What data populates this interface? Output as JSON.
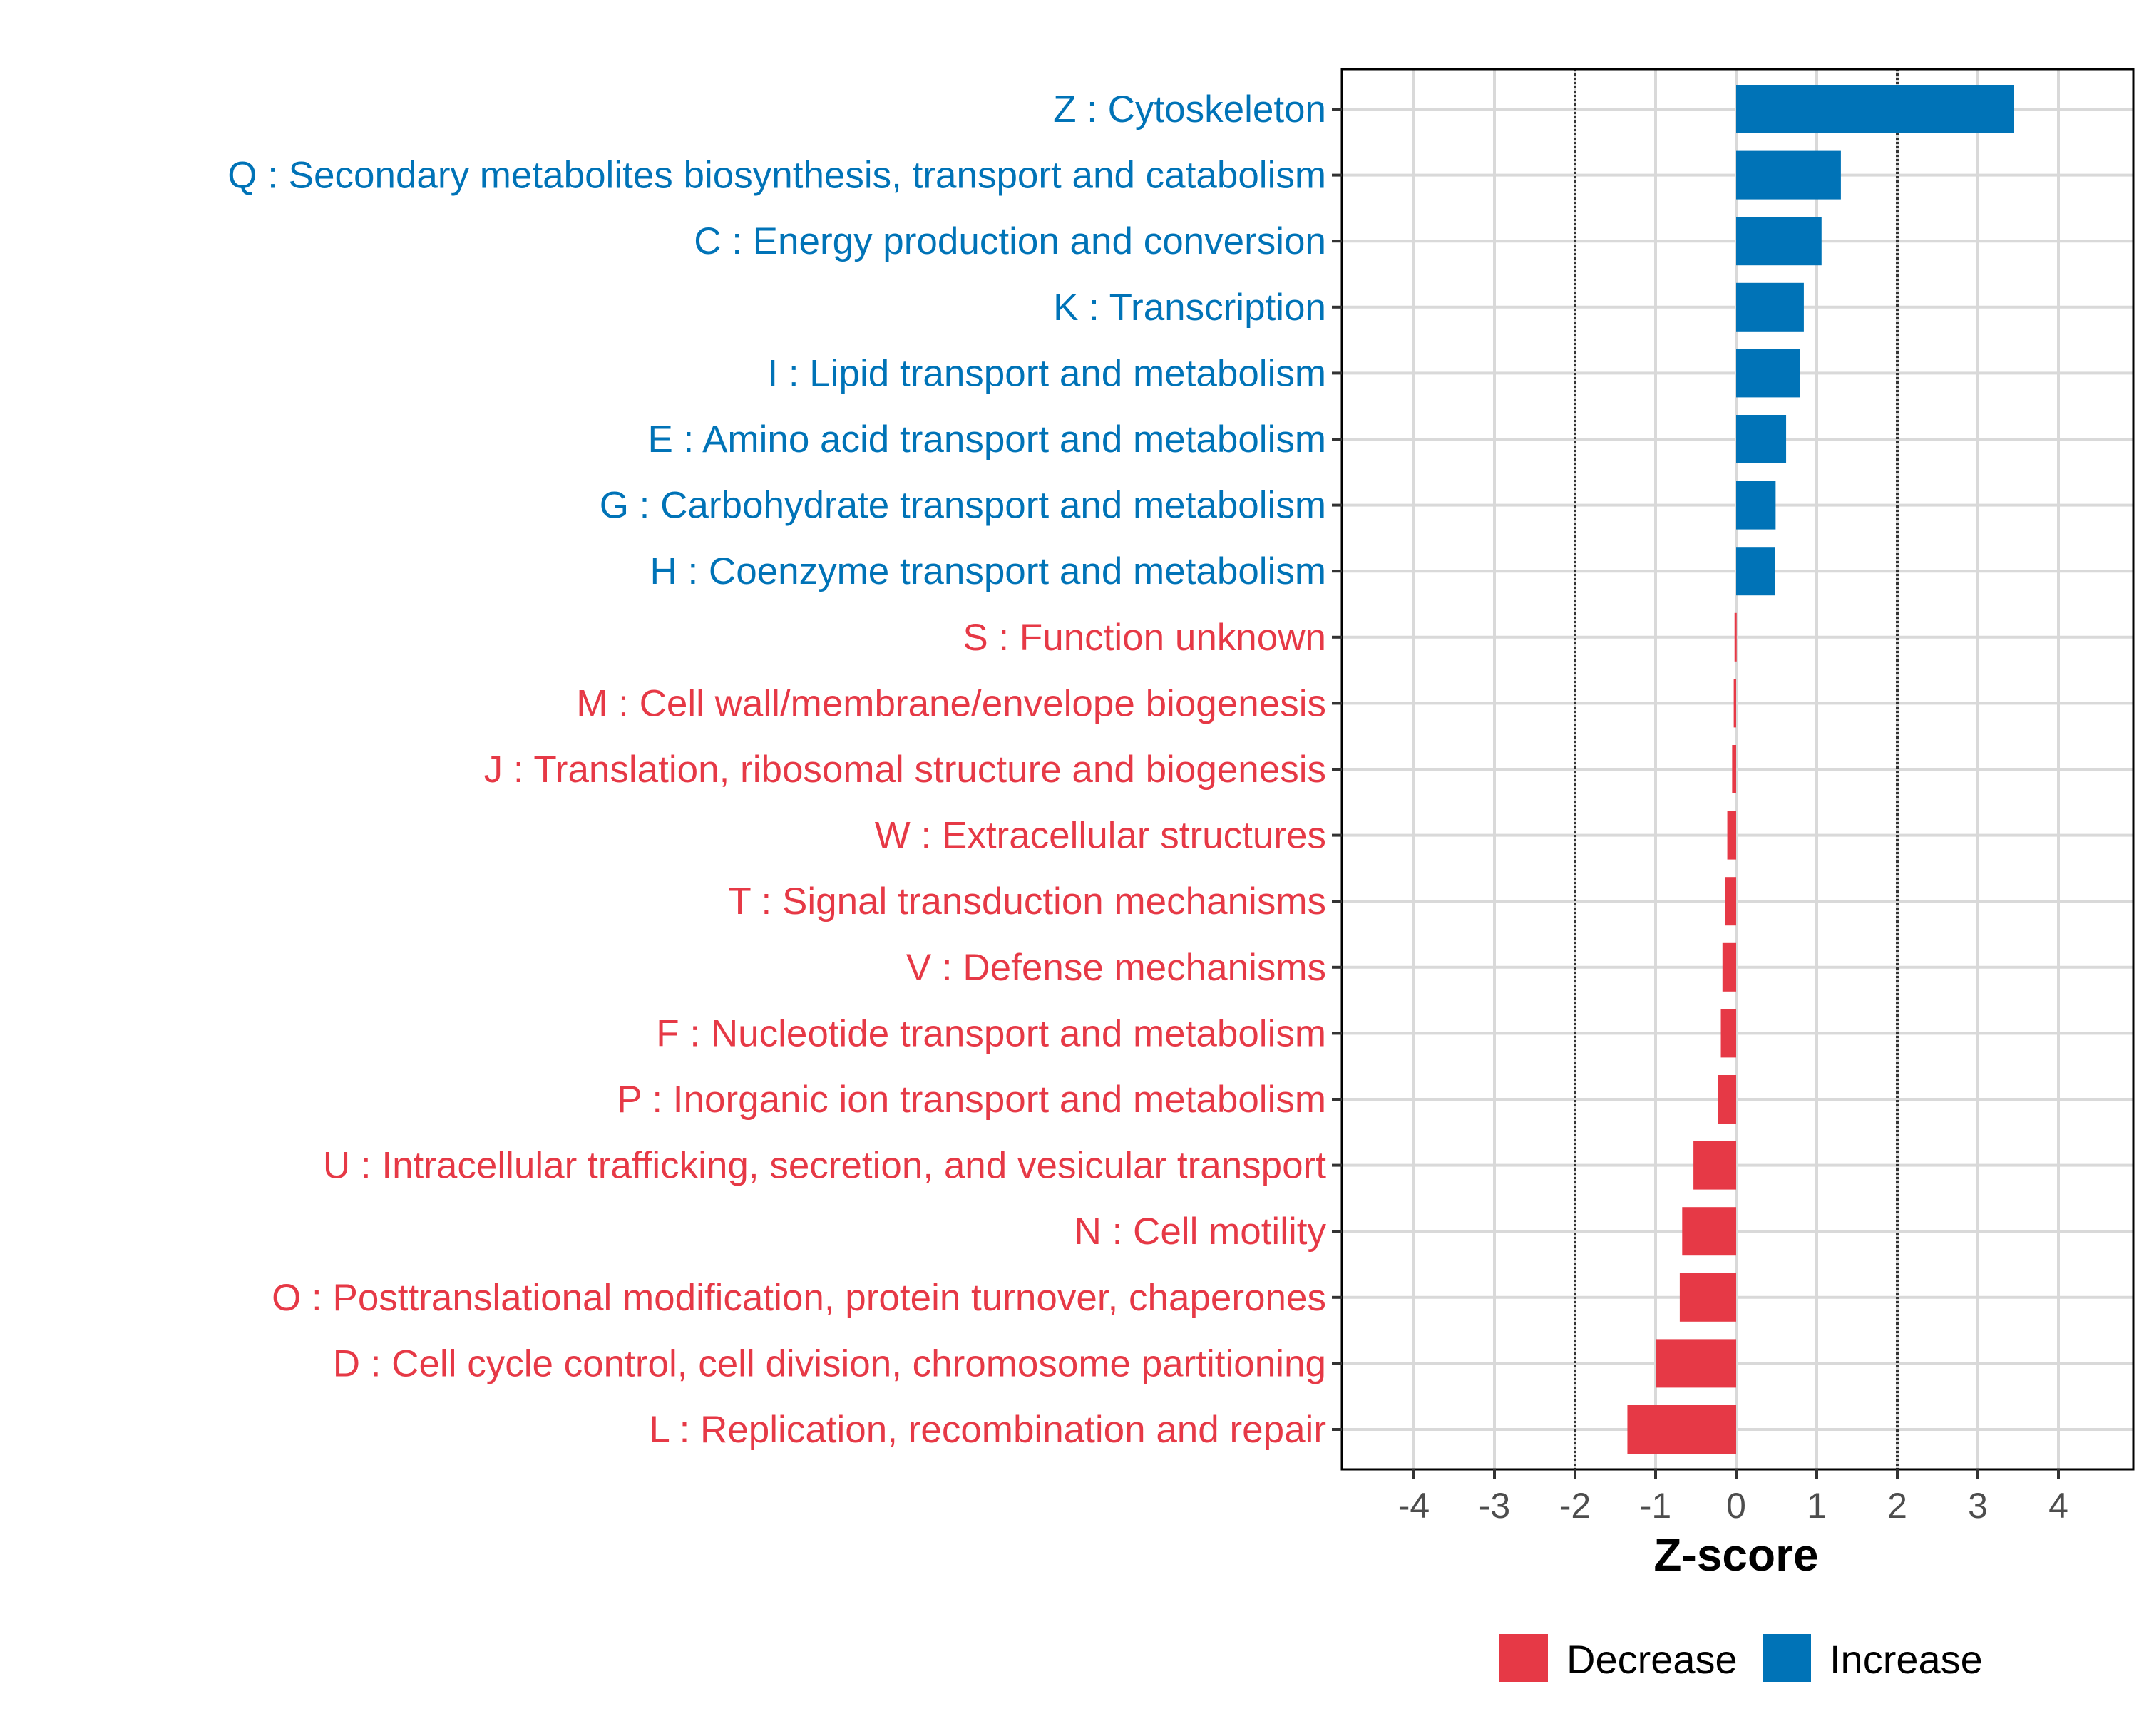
{
  "colors": {
    "increase": "#0073B7",
    "decrease": "#E63946",
    "grid": "#d9d9d9",
    "threshold": "#333333"
  },
  "chart_data": {
    "type": "bar",
    "orientation": "horizontal",
    "title": "",
    "xlabel": "Z-score",
    "ylabel": "",
    "xlim": [
      -4.8,
      4.8
    ],
    "xticks": [
      -4,
      -3,
      -2,
      -1,
      0,
      1,
      2,
      3,
      4
    ],
    "thresholds": [
      -2,
      2
    ],
    "grid": true,
    "legend_position": "bottom",
    "legend": [
      {
        "key": "decrease",
        "label": "Decrease"
      },
      {
        "key": "increase",
        "label": "Increase"
      }
    ],
    "categories": [
      "Z : Cytoskeleton",
      "Q : Secondary metabolites biosynthesis, transport and catabolism",
      "C : Energy production and conversion",
      "K : Transcription",
      "I : Lipid transport and metabolism",
      "E : Amino acid transport and metabolism",
      "G : Carbohydrate transport and metabolism",
      "H : Coenzyme transport and metabolism",
      "S : Function unknown",
      "M : Cell wall/membrane/envelope biogenesis",
      "J : Translation, ribosomal structure and biogenesis",
      "W : Extracellular structures",
      "T : Signal transduction mechanisms",
      "V : Defense mechanisms",
      "F : Nucleotide transport and metabolism",
      "P : Inorganic ion transport and metabolism",
      "U : Intracellular trafficking, secretion, and vesicular transport",
      "N : Cell motility",
      "O : Posttranslational modification, protein turnover, chaperones",
      "D : Cell cycle control, cell division, chromosome partitioning",
      "L : Replication, recombination and repair"
    ],
    "values": [
      3.45,
      1.3,
      1.06,
      0.84,
      0.79,
      0.62,
      0.49,
      0.48,
      -0.02,
      -0.03,
      -0.05,
      -0.11,
      -0.14,
      -0.17,
      -0.19,
      -0.23,
      -0.53,
      -0.67,
      -0.7,
      -1.0,
      -1.35
    ],
    "groups": [
      "increase",
      "increase",
      "increase",
      "increase",
      "increase",
      "increase",
      "increase",
      "increase",
      "decrease",
      "decrease",
      "decrease",
      "decrease",
      "decrease",
      "decrease",
      "decrease",
      "decrease",
      "decrease",
      "decrease",
      "decrease",
      "decrease",
      "decrease"
    ]
  }
}
